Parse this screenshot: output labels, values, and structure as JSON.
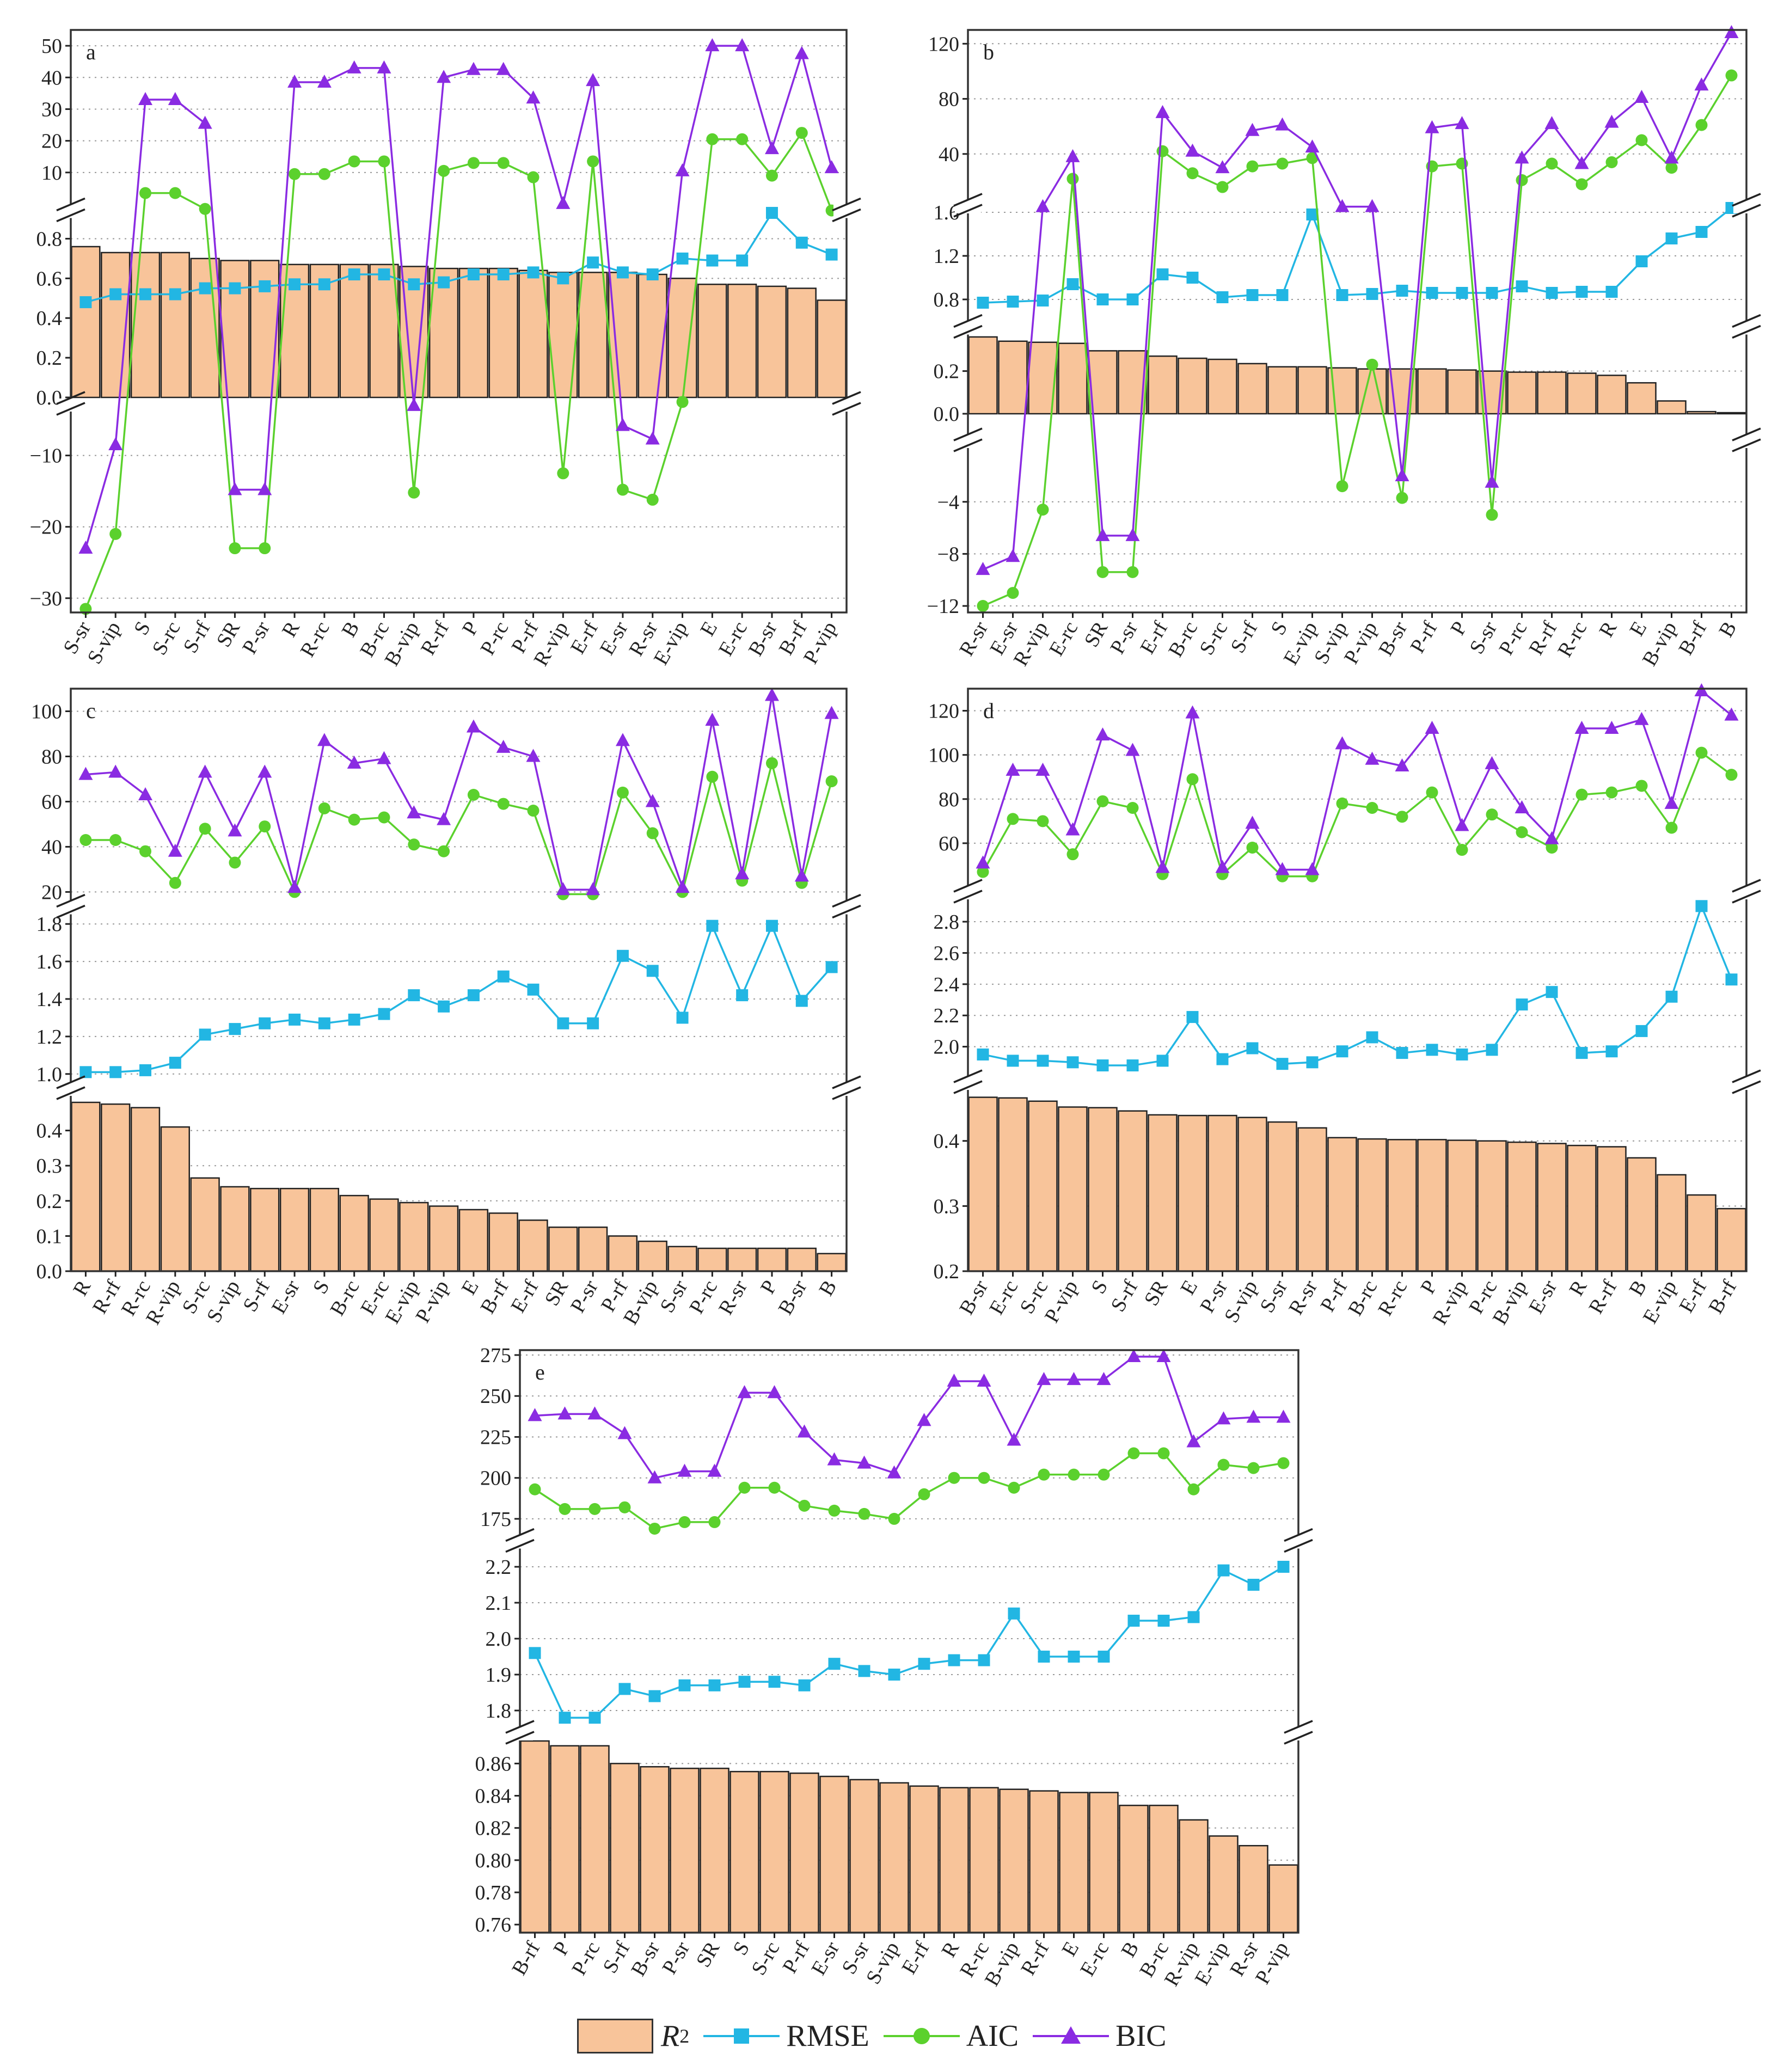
{
  "legend": {
    "r2": "R",
    "r2_sup": "2",
    "rmse": "RMSE",
    "aic": "AIC",
    "bic": "BIC"
  },
  "colors": {
    "bar": "#F8C49A",
    "bar_stroke": "#222222",
    "rmse": "#22B6E3",
    "aic": "#5BD12D",
    "bic": "#8A2BE2"
  },
  "chart_data": [
    {
      "type": "bar+line",
      "panel": "a",
      "categories": [
        "S-sr",
        "S-vip",
        "S",
        "S-rc",
        "S-rf",
        "SR",
        "P-sr",
        "R",
        "R-rc",
        "B",
        "B-rc",
        "B-vip",
        "R-rf",
        "P",
        "P-rc",
        "P-rf",
        "R-vip",
        "E-rf",
        "E-sr",
        "R-sr",
        "E-vip",
        "E",
        "E-rc",
        "B-sr",
        "B-rf",
        "P-vip"
      ],
      "segments": [
        {
          "name": "top",
          "range": [
            0,
            55
          ],
          "ticks": [
            10,
            20,
            30,
            40,
            50
          ]
        },
        {
          "name": "mid",
          "range": [
            0,
            0.9
          ],
          "ticks": [
            0.0,
            0.2,
            0.4,
            0.6,
            0.8
          ]
        },
        {
          "name": "bot",
          "range": [
            -32,
            -4
          ],
          "ticks": [
            -30,
            -20,
            -10
          ]
        }
      ],
      "series": [
        {
          "name": "R2",
          "kind": "bar",
          "segment": "mid",
          "values": [
            0.76,
            0.73,
            0.73,
            0.73,
            0.7,
            0.69,
            0.69,
            0.67,
            0.67,
            0.67,
            0.67,
            0.66,
            0.65,
            0.65,
            0.65,
            0.64,
            0.63,
            0.63,
            0.63,
            0.62,
            0.6,
            0.57,
            0.57,
            0.56,
            0.55,
            0.49
          ]
        },
        {
          "name": "RMSE",
          "kind": "line",
          "marker": "square",
          "segment": "mid",
          "values": [
            0.48,
            0.52,
            0.52,
            0.52,
            0.55,
            0.55,
            0.56,
            0.57,
            0.57,
            0.62,
            0.62,
            0.57,
            0.58,
            0.62,
            0.62,
            0.63,
            0.6,
            0.68,
            0.63,
            0.62,
            0.7,
            0.69,
            0.69,
            0.93,
            0.78,
            0.72
          ]
        },
        {
          "name": "AIC",
          "kind": "line",
          "marker": "circle",
          "values": [
            -31.5,
            -21,
            3.5,
            3.5,
            -1.5,
            -23,
            -23,
            9.5,
            9.5,
            13.5,
            13.5,
            -15.2,
            10.5,
            13,
            13,
            8.5,
            -12.5,
            13.5,
            -14.8,
            -16.2,
            -2.5,
            20.5,
            20.5,
            9,
            22.5,
            -2
          ]
        },
        {
          "name": "BIC",
          "kind": "line",
          "marker": "triangle",
          "values": [
            -23,
            -8.5,
            33,
            33,
            25.5,
            -14.8,
            -14.8,
            38.5,
            38.5,
            43,
            43,
            -3,
            40,
            42.5,
            42.5,
            33.5,
            0.2,
            39,
            -5.8,
            -7.7,
            10.5,
            50,
            50,
            17.5,
            47.5,
            11.5
          ]
        }
      ]
    },
    {
      "type": "bar+line",
      "panel": "b",
      "categories": [
        "R-sr",
        "E-sr",
        "R-vip",
        "E-rc",
        "SR",
        "P-sr",
        "E-rf",
        "B-rc",
        "S-rc",
        "S-rf",
        "S",
        "E-vip",
        "S-vip",
        "P-vip",
        "B-sr",
        "P-rf",
        "P",
        "S-sr",
        "P-rc",
        "R-rf",
        "R-rc",
        "R",
        "E",
        "B-vip",
        "B-rf",
        "B"
      ],
      "segments": [
        {
          "name": "top",
          "range": [
            1.6,
            130
          ],
          "ticks": [
            40,
            80,
            120
          ]
        },
        {
          "name": "mid",
          "range": [
            0.6,
            1.65
          ],
          "ticks": [
            0.8,
            1.2,
            1.6
          ]
        },
        {
          "name": "mid2",
          "range": [
            0,
            0.37
          ],
          "ticks": [
            0.0,
            0.2
          ]
        },
        {
          "name": "bot",
          "range": [
            -12.5,
            -1.5
          ],
          "ticks": [
            -12,
            -8,
            -4
          ]
        }
      ],
      "series": [
        {
          "name": "R2",
          "kind": "bar",
          "segment": "mid2",
          "values": [
            0.36,
            0.34,
            0.335,
            0.33,
            0.295,
            0.295,
            0.27,
            0.26,
            0.255,
            0.235,
            0.22,
            0.22,
            0.215,
            0.21,
            0.21,
            0.21,
            0.205,
            0.2,
            0.195,
            0.195,
            0.19,
            0.18,
            0.145,
            0.06,
            0.01,
            0.005
          ]
        },
        {
          "name": "RMSE",
          "kind": "line",
          "marker": "square",
          "segment": "mid",
          "values": [
            0.77,
            0.78,
            0.79,
            0.94,
            0.8,
            0.8,
            1.03,
            1.0,
            0.82,
            0.84,
            0.84,
            1.58,
            0.84,
            0.85,
            0.88,
            0.86,
            0.86,
            0.86,
            0.92,
            0.86,
            0.87,
            0.87,
            1.15,
            1.36,
            1.42,
            1.64
          ]
        },
        {
          "name": "AIC",
          "kind": "line",
          "marker": "circle",
          "values": [
            -12,
            -11,
            -4.6,
            22,
            -9.4,
            -9.4,
            42,
            26,
            16,
            31,
            33,
            37,
            -2.8,
            0.23,
            -3.7,
            31,
            33,
            -5,
            21,
            33,
            18,
            34,
            50,
            30,
            61,
            97
          ]
        },
        {
          "name": "BIC",
          "kind": "line",
          "marker": "triangle",
          "values": [
            -9.2,
            -8.2,
            1.7,
            38,
            -6.6,
            -6.6,
            70,
            42,
            30,
            57,
            61,
            45,
            1.75,
            1.77,
            -2,
            59,
            62,
            -2.5,
            37,
            62,
            33,
            63,
            81,
            37,
            90,
            128
          ]
        }
      ]
    },
    {
      "type": "bar+line",
      "panel": "c",
      "categories": [
        "R",
        "R-rf",
        "R-rc",
        "R-vip",
        "S-rc",
        "S-vip",
        "S-rf",
        "E-sr",
        "S",
        "B-rc",
        "E-rc",
        "E-vip",
        "P-vip",
        "E",
        "B-rf",
        "E-rf",
        "SR",
        "P-sr",
        "P-rf",
        "B-vip",
        "S-sr",
        "P-rc",
        "R-sr",
        "P",
        "B-sr",
        "B"
      ],
      "segments": [
        {
          "name": "top",
          "range": [
            16,
            110
          ],
          "ticks": [
            20,
            40,
            60,
            80,
            100
          ]
        },
        {
          "name": "mid",
          "range": [
            0.95,
            1.85
          ],
          "ticks": [
            1.0,
            1.2,
            1.4,
            1.6,
            1.8
          ]
        },
        {
          "name": "bot",
          "range": [
            0,
            0.5
          ],
          "ticks": [
            0.0,
            0.1,
            0.2,
            0.3,
            0.4
          ]
        }
      ],
      "series": [
        {
          "name": "R2",
          "kind": "bar",
          "segment": "bot",
          "values": [
            0.48,
            0.475,
            0.465,
            0.41,
            0.265,
            0.24,
            0.235,
            0.235,
            0.235,
            0.215,
            0.205,
            0.195,
            0.185,
            0.175,
            0.165,
            0.145,
            0.125,
            0.125,
            0.1,
            0.085,
            0.07,
            0.065,
            0.065,
            0.065,
            0.065,
            0.05
          ]
        },
        {
          "name": "RMSE",
          "kind": "line",
          "marker": "square",
          "segment": "mid",
          "values": [
            1.01,
            1.01,
            1.02,
            1.06,
            1.21,
            1.24,
            1.27,
            1.29,
            1.27,
            1.29,
            1.32,
            1.42,
            1.36,
            1.42,
            1.52,
            1.45,
            1.27,
            1.27,
            1.63,
            1.55,
            1.3,
            1.79,
            1.42,
            1.79,
            1.39,
            1.57
          ]
        },
        {
          "name": "AIC",
          "kind": "line",
          "marker": "circle",
          "segment": "top",
          "values": [
            43,
            43,
            38,
            24,
            48,
            33,
            49,
            20,
            57,
            52,
            53,
            41,
            38,
            63,
            59,
            56,
            19,
            19,
            64,
            46,
            20,
            71,
            25,
            77,
            24,
            69
          ]
        },
        {
          "name": "BIC",
          "kind": "line",
          "marker": "triangle",
          "segment": "top",
          "values": [
            72,
            73,
            63,
            38,
            73,
            47,
            73,
            22,
            87,
            77,
            79,
            55,
            52,
            93,
            84,
            80,
            21,
            21,
            87,
            60,
            22,
            96,
            28,
            107,
            27,
            99
          ]
        }
      ]
    },
    {
      "type": "bar+line",
      "panel": "d",
      "categories": [
        "B-sr",
        "E-rc",
        "S-rc",
        "P-vip",
        "S",
        "S-rf",
        "SR",
        "E",
        "P-sr",
        "S-vip",
        "S-sr",
        "R-sr",
        "P-rf",
        "B-rc",
        "R-rc",
        "P",
        "R-vip",
        "P-rc",
        "B-vip",
        "E-sr",
        "R",
        "R-rf",
        "B",
        "E-vip",
        "E-rf",
        "B-rf"
      ],
      "segments": [
        {
          "name": "top",
          "range": [
            40,
            130
          ],
          "ticks": [
            60,
            80,
            100,
            120
          ]
        },
        {
          "name": "mid",
          "range": [
            1.8,
            2.95
          ],
          "ticks": [
            2.0,
            2.2,
            2.4,
            2.6,
            2.8
          ]
        },
        {
          "name": "bot",
          "range": [
            0.2,
            0.48
          ],
          "ticks": [
            0.2,
            0.3,
            0.4
          ]
        }
      ],
      "series": [
        {
          "name": "R2",
          "kind": "bar",
          "segment": "bot",
          "values": [
            0.467,
            0.466,
            0.461,
            0.452,
            0.451,
            0.446,
            0.44,
            0.439,
            0.439,
            0.436,
            0.429,
            0.42,
            0.405,
            0.403,
            0.402,
            0.402,
            0.401,
            0.4,
            0.398,
            0.396,
            0.393,
            0.391,
            0.374,
            0.348,
            0.317,
            0.296
          ]
        },
        {
          "name": "RMSE",
          "kind": "line",
          "marker": "square",
          "segment": "mid",
          "values": [
            1.95,
            1.91,
            1.91,
            1.9,
            1.88,
            1.88,
            1.91,
            2.19,
            1.92,
            1.99,
            1.89,
            1.9,
            1.97,
            2.06,
            1.96,
            1.98,
            1.95,
            1.98,
            2.27,
            2.35,
            1.96,
            1.97,
            2.1,
            2.32,
            2.9,
            2.43
          ]
        },
        {
          "name": "AIC",
          "kind": "line",
          "marker": "circle",
          "segment": "top",
          "values": [
            47,
            71,
            70,
            55,
            79,
            76,
            46,
            89,
            46,
            58,
            45,
            45,
            78,
            76,
            72,
            83,
            57,
            73,
            65,
            58,
            82,
            83,
            86,
            67,
            101,
            91
          ]
        },
        {
          "name": "BIC",
          "kind": "line",
          "marker": "triangle",
          "segment": "top",
          "values": [
            51,
            93,
            93,
            66,
            109,
            102,
            49,
            119,
            49,
            69,
            48,
            48,
            105,
            98,
            95,
            112,
            68,
            96,
            76,
            62,
            112,
            112,
            116,
            78,
            129,
            118
          ]
        }
      ]
    },
    {
      "type": "bar+line",
      "panel": "e",
      "categories": [
        "B-rf",
        "P",
        "P-rc",
        "S-rf",
        "B-sr",
        "P-sr",
        "SR",
        "S",
        "S-rc",
        "P-rf",
        "E-sr",
        "S-sr",
        "S-vip",
        "E-rf",
        "R",
        "R-rc",
        "B-vip",
        "R-rf",
        "E",
        "E-rc",
        "B",
        "B-rc",
        "R-vip",
        "E-vip",
        "R-sr",
        "P-vip"
      ],
      "segments": [
        {
          "name": "top",
          "range": [
            165,
            278
          ],
          "ticks": [
            175,
            200,
            225,
            250,
            275
          ]
        },
        {
          "name": "mid",
          "range": [
            1.75,
            2.25
          ],
          "ticks": [
            1.8,
            1.9,
            2.0,
            2.1,
            2.2
          ]
        },
        {
          "name": "bot",
          "range": [
            0.755,
            0.875
          ],
          "ticks": [
            0.76,
            0.78,
            0.8,
            0.82,
            0.84,
            0.86
          ]
        }
      ],
      "series": [
        {
          "name": "R2",
          "kind": "bar",
          "segment": "bot",
          "values": [
            0.874,
            0.871,
            0.871,
            0.86,
            0.858,
            0.857,
            0.857,
            0.855,
            0.855,
            0.854,
            0.852,
            0.85,
            0.848,
            0.846,
            0.845,
            0.845,
            0.844,
            0.843,
            0.842,
            0.842,
            0.834,
            0.834,
            0.825,
            0.815,
            0.809,
            0.797
          ]
        },
        {
          "name": "RMSE",
          "kind": "line",
          "marker": "square",
          "segment": "mid",
          "values": [
            1.96,
            1.78,
            1.78,
            1.86,
            1.84,
            1.87,
            1.87,
            1.88,
            1.88,
            1.87,
            1.93,
            1.91,
            1.9,
            1.93,
            1.94,
            1.94,
            2.07,
            1.95,
            1.95,
            1.95,
            2.05,
            2.05,
            2.06,
            2.19,
            2.15,
            2.2
          ]
        },
        {
          "name": "AIC",
          "kind": "line",
          "marker": "circle",
          "segment": "top",
          "values": [
            193,
            181,
            181,
            182,
            169,
            173,
            173,
            194,
            194,
            183,
            180,
            178,
            175,
            190,
            200,
            200,
            194,
            202,
            202,
            202,
            215,
            215,
            193,
            208,
            206,
            209
          ]
        },
        {
          "name": "BIC",
          "kind": "line",
          "marker": "triangle",
          "segment": "top",
          "values": [
            238,
            239,
            239,
            227,
            200,
            204,
            204,
            252,
            252,
            228,
            211,
            209,
            203,
            235,
            259,
            259,
            223,
            260,
            260,
            260,
            274,
            274,
            222,
            236,
            237,
            237
          ]
        }
      ]
    }
  ]
}
